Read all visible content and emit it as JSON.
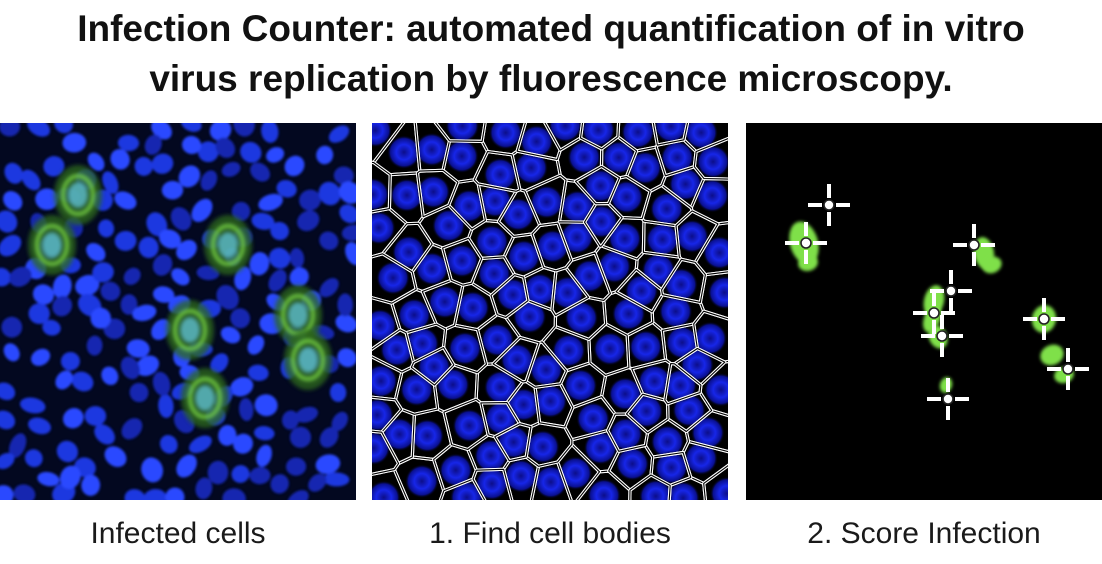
{
  "title": {
    "line1": "Infection Counter: automated quantification of in vitro",
    "line2": "virus replication by fluorescence microscopy."
  },
  "panels": [
    {
      "caption": "Infected cells",
      "image": "fluorescence-micrograph"
    },
    {
      "caption": "1. Find cell bodies",
      "image": "segmented-cell-bodies"
    },
    {
      "caption": "2. Score Infection",
      "image": "scored-infected-cells"
    }
  ],
  "colors": {
    "nucleus_blue": "#1f3cf0",
    "infection_green": "#7fe04a",
    "outline_white": "#ffffff",
    "marker_white": "#ffffff",
    "background": "#000000"
  }
}
